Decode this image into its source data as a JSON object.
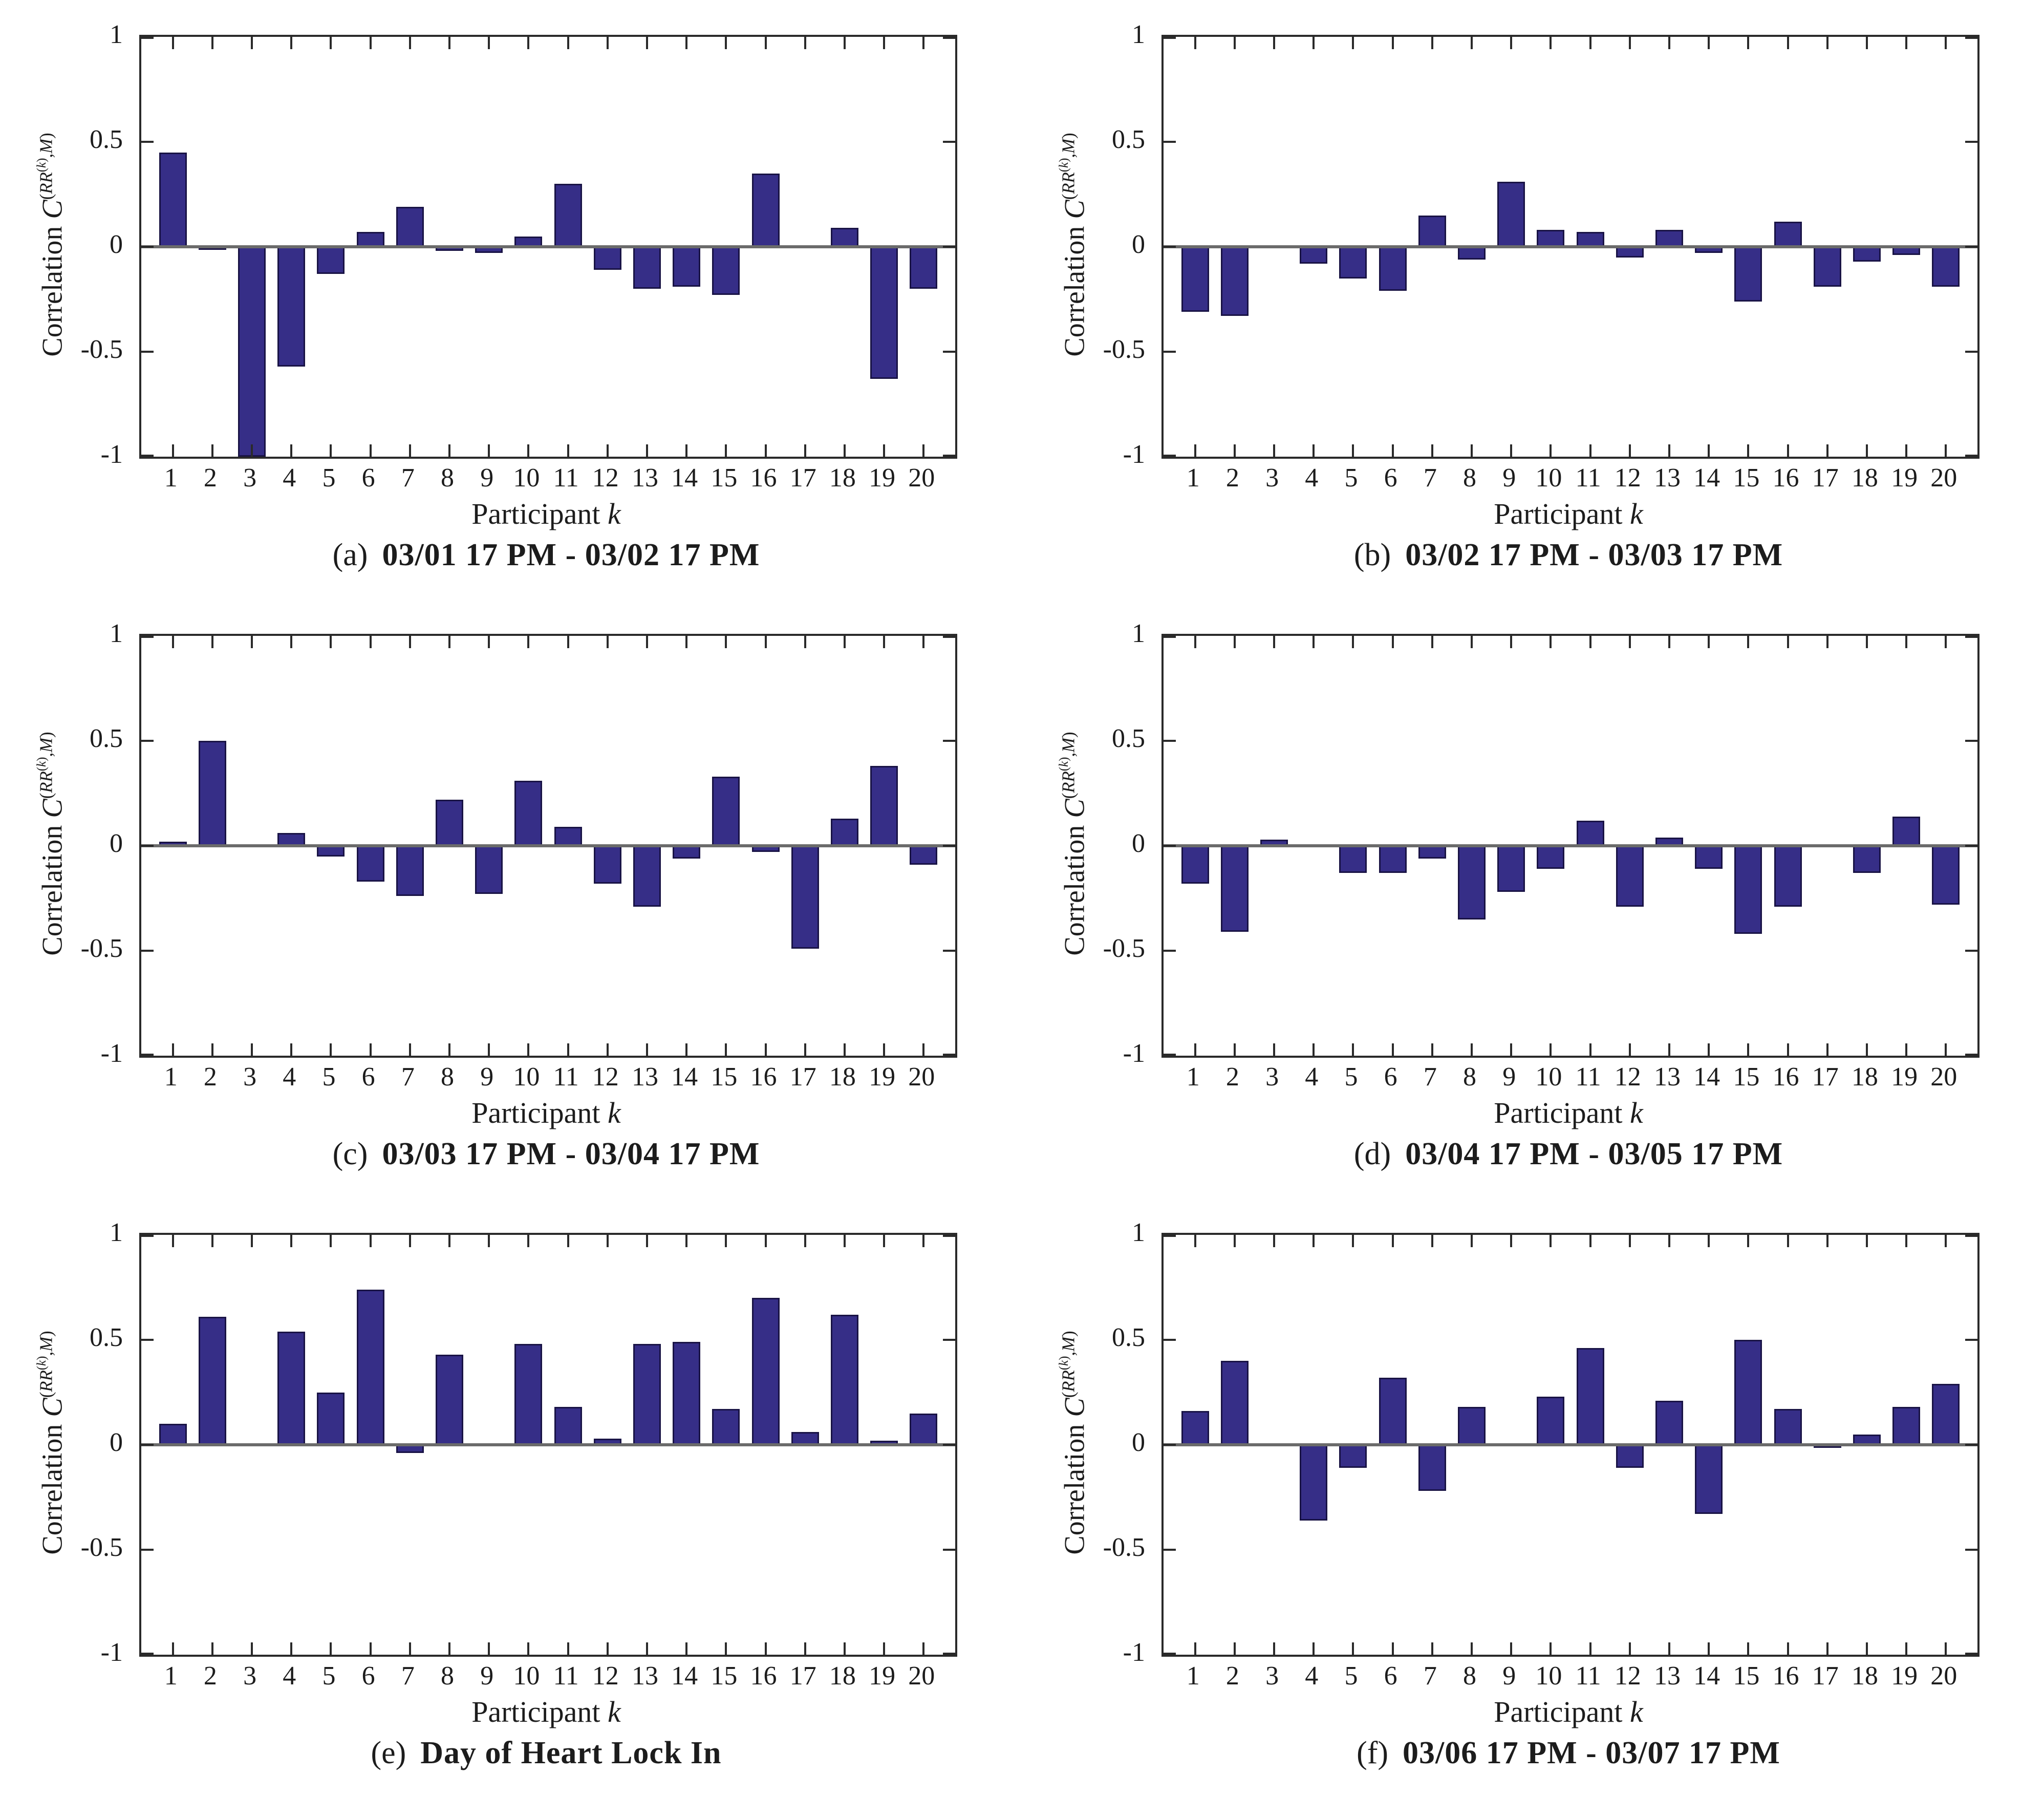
{
  "figure": {
    "description": "Six-panel MATLAB-style bar chart figure of per-participant correlations across consecutive 24-hour windows",
    "rows": 3,
    "cols": 2
  },
  "style": {
    "bar_fill": "#362e87",
    "bar_edge": "#191345",
    "axis_color": "#2a2a2a",
    "zero_line_color": "#6b6b6b",
    "text_color": "#1c1c1c",
    "background": "#ffffff"
  },
  "axis_labels": {
    "y_text": "Correlation",
    "y_sym": "C",
    "y_sup_open": "(",
    "y_rr": "RR",
    "y_k_open": "(",
    "y_k": "k",
    "y_k_close": ")",
    "y_comma": ",",
    "y_m": "M",
    "y_sup_close": ")",
    "x_text": "Participant",
    "x_var": "k"
  },
  "chart_data": [
    {
      "id": "a",
      "type": "bar",
      "caption_prefix": "(a)",
      "title": "03/01 17 PM - 03/02 17 PM",
      "xlabel": "Participant k",
      "ylabel": "Correlation C^(RR^(k),M)",
      "ylim": [
        -1,
        1
      ],
      "xlim": [
        0.2,
        20.8
      ],
      "yticks": [
        1,
        0.5,
        0,
        -0.5,
        -1
      ],
      "ytick_labels": [
        "1",
        "0.5",
        "0",
        "-0.5",
        "-1"
      ],
      "categories": [
        "1",
        "2",
        "3",
        "4",
        "5",
        "6",
        "7",
        "8",
        "9",
        "10",
        "11",
        "12",
        "13",
        "14",
        "15",
        "16",
        "17",
        "18",
        "19",
        "20"
      ],
      "values": [
        0.45,
        -0.01,
        -1.0,
        -0.57,
        -0.13,
        0.07,
        0.19,
        -0.02,
        -0.03,
        0.05,
        0.3,
        -0.11,
        -0.2,
        -0.19,
        -0.23,
        0.35,
        0,
        0.09,
        -0.63,
        -0.2
      ]
    },
    {
      "id": "b",
      "type": "bar",
      "caption_prefix": "(b)",
      "title": "03/02 17 PM - 03/03 17 PM",
      "xlabel": "Participant k",
      "ylabel": "Correlation C^(RR^(k),M)",
      "ylim": [
        -1,
        1
      ],
      "xlim": [
        0.2,
        20.8
      ],
      "yticks": [
        1,
        0.5,
        0,
        -0.5,
        -1
      ],
      "ytick_labels": [
        "1",
        "0.5",
        "0",
        "-0.5",
        "-1"
      ],
      "categories": [
        "1",
        "2",
        "3",
        "4",
        "5",
        "6",
        "7",
        "8",
        "9",
        "10",
        "11",
        "12",
        "13",
        "14",
        "15",
        "16",
        "17",
        "18",
        "19",
        "20"
      ],
      "values": [
        -0.31,
        -0.33,
        0,
        -0.08,
        -0.15,
        -0.21,
        0.15,
        -0.06,
        0.31,
        0.08,
        0.07,
        -0.05,
        0.08,
        -0.03,
        -0.26,
        0.12,
        -0.19,
        -0.07,
        -0.04,
        -0.19
      ]
    },
    {
      "id": "c",
      "type": "bar",
      "caption_prefix": "(c)",
      "title": "03/03 17 PM - 03/04 17 PM",
      "xlabel": "Participant k",
      "ylabel": "Correlation C^(RR^(k),M)",
      "ylim": [
        -1,
        1
      ],
      "xlim": [
        0.2,
        20.8
      ],
      "yticks": [
        1,
        0.5,
        0,
        -0.5,
        -1
      ],
      "ytick_labels": [
        "1",
        "0.5",
        "0",
        "-0.5",
        "-1"
      ],
      "categories": [
        "1",
        "2",
        "3",
        "4",
        "5",
        "6",
        "7",
        "8",
        "9",
        "10",
        "11",
        "12",
        "13",
        "14",
        "15",
        "16",
        "17",
        "18",
        "19",
        "20"
      ],
      "values": [
        0.02,
        0.5,
        0,
        0.06,
        -0.05,
        -0.17,
        -0.24,
        0.22,
        -0.23,
        0.31,
        0.09,
        -0.18,
        -0.29,
        -0.06,
        0.33,
        -0.03,
        -0.49,
        0.13,
        0.38,
        -0.09
      ]
    },
    {
      "id": "d",
      "type": "bar",
      "caption_prefix": "(d)",
      "title": "03/04 17 PM - 03/05 17 PM",
      "xlabel": "Participant k",
      "ylabel": "Correlation C^(RR^(k),M)",
      "ylim": [
        -1,
        1
      ],
      "xlim": [
        0.2,
        20.8
      ],
      "yticks": [
        1,
        0.5,
        0,
        -0.5,
        -1
      ],
      "ytick_labels": [
        "1",
        "0.5",
        "0",
        "-0.5",
        "-1"
      ],
      "categories": [
        "1",
        "2",
        "3",
        "4",
        "5",
        "6",
        "7",
        "8",
        "9",
        "10",
        "11",
        "12",
        "13",
        "14",
        "15",
        "16",
        "17",
        "18",
        "19",
        "20"
      ],
      "values": [
        -0.18,
        -0.41,
        0.03,
        0,
        -0.13,
        -0.13,
        -0.06,
        -0.35,
        -0.22,
        -0.11,
        0.12,
        -0.29,
        0.04,
        -0.11,
        -0.42,
        -0.29,
        0,
        -0.13,
        0.14,
        -0.28
      ]
    },
    {
      "id": "e",
      "type": "bar",
      "caption_prefix": "(e)",
      "title": "Day of Heart Lock In",
      "xlabel": "Participant k",
      "ylabel": "Correlation C^(RR^(k),M)",
      "ylim": [
        -1,
        1
      ],
      "xlim": [
        0.2,
        20.8
      ],
      "yticks": [
        1,
        0.5,
        0,
        -0.5,
        -1
      ],
      "ytick_labels": [
        "1",
        "0.5",
        "0",
        "-0.5",
        "-1"
      ],
      "categories": [
        "1",
        "2",
        "3",
        "4",
        "5",
        "6",
        "7",
        "8",
        "9",
        "10",
        "11",
        "12",
        "13",
        "14",
        "15",
        "16",
        "17",
        "18",
        "19",
        "20"
      ],
      "values": [
        0.1,
        0.61,
        0,
        0.54,
        0.25,
        0.74,
        -0.04,
        0.43,
        0,
        0.48,
        0.18,
        0.03,
        0.48,
        0.49,
        0.17,
        0.7,
        0.06,
        0.62,
        0.02,
        0.15
      ]
    },
    {
      "id": "f",
      "type": "bar",
      "caption_prefix": "(f)",
      "title": "03/06 17 PM - 03/07 17 PM",
      "xlabel": "Participant k",
      "ylabel": "Correlation C^(RR^(k),M)",
      "ylim": [
        -1,
        1
      ],
      "xlim": [
        0.2,
        20.8
      ],
      "yticks": [
        1,
        0.5,
        0,
        -0.5,
        -1
      ],
      "ytick_labels": [
        "1",
        "0.5",
        "0",
        "-0.5",
        "-1"
      ],
      "categories": [
        "1",
        "2",
        "3",
        "4",
        "5",
        "6",
        "7",
        "8",
        "9",
        "10",
        "11",
        "12",
        "13",
        "14",
        "15",
        "16",
        "17",
        "18",
        "19",
        "20"
      ],
      "values": [
        0.16,
        0.4,
        0,
        -0.36,
        -0.11,
        0.32,
        -0.22,
        0.18,
        0,
        0.23,
        0.46,
        -0.11,
        0.21,
        -0.33,
        0.5,
        0.17,
        -0.01,
        0.05,
        0.18,
        0.29
      ]
    }
  ]
}
